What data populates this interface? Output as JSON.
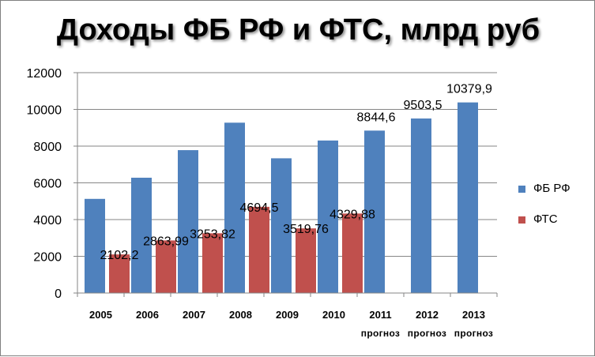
{
  "chart_data": {
    "type": "bar",
    "title": "Доходы ФБ РФ и ФТС, млрд руб",
    "categories": [
      "2005",
      "2006",
      "2007",
      "2008",
      "2009",
      "2010",
      "2011",
      "2012",
      "2013"
    ],
    "category_notes": [
      "",
      "",
      "",
      "",
      "",
      "",
      "прогноз",
      "прогноз",
      "прогноз"
    ],
    "series": [
      {
        "name": "ФБ РФ",
        "color": "#4f81bd",
        "values": [
          5127,
          6279,
          7781,
          9276,
          7337,
          8305,
          8844.6,
          9503.5,
          10379.9
        ],
        "labels": [
          "",
          "",
          "",
          "",
          "",
          "",
          "8844,6",
          "9503,5",
          "10379,9"
        ]
      },
      {
        "name": "ФТС",
        "color": "#c0504d",
        "values": [
          2102.2,
          2863.99,
          3253.82,
          4694.5,
          3519.76,
          4329.88,
          null,
          null,
          null
        ],
        "labels": [
          "2102,2",
          "2863,99",
          "3253,82",
          "4694,5",
          "3519,76",
          "4329,88",
          "",
          "",
          ""
        ]
      }
    ],
    "ylim": [
      0,
      12000
    ],
    "yticks": [
      "0",
      "2000",
      "4000",
      "6000",
      "8000",
      "10000",
      "12000"
    ],
    "grid": true,
    "legend": "right"
  }
}
